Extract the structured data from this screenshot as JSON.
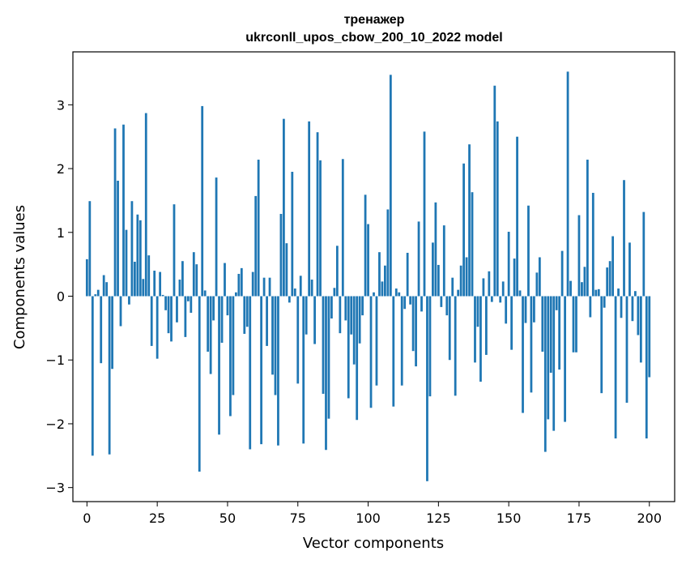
{
  "chart_data": {
    "type": "bar",
    "title_line1": "тренажер",
    "title_line2": "ukrconll_upos_cbow_200_10_2022 model",
    "xlabel": "Vector components",
    "ylabel": "Components values",
    "xlim": [
      -5,
      209
    ],
    "ylim": [
      -3.22,
      3.83
    ],
    "xticks": [
      0,
      25,
      50,
      75,
      100,
      125,
      150,
      175,
      200
    ],
    "yticks": [
      -3,
      -2,
      -1,
      0,
      1,
      2,
      3
    ],
    "ytick_labels": [
      "−3",
      "−2",
      "−1",
      "0",
      "1",
      "2",
      "3"
    ],
    "bar_color": "#1f77b4",
    "grid": false,
    "values": [
      0.58,
      1.49,
      -2.5,
      0.03,
      0.1,
      -1.05,
      0.33,
      0.22,
      -2.48,
      -1.14,
      2.63,
      1.81,
      -0.47,
      2.69,
      1.04,
      -0.13,
      1.49,
      0.54,
      1.28,
      1.19,
      0.27,
      2.87,
      0.64,
      -0.78,
      0.4,
      -0.98,
      0.38,
      0.02,
      -0.22,
      -0.58,
      -0.71,
      1.44,
      -0.41,
      0.26,
      0.55,
      -0.64,
      -0.08,
      -0.26,
      0.69,
      0.5,
      -2.75,
      2.98,
      0.09,
      -0.87,
      -1.22,
      -0.38,
      1.86,
      -2.17,
      -0.73,
      0.52,
      -0.3,
      -1.88,
      -1.55,
      0.06,
      0.35,
      0.44,
      -0.59,
      -0.48,
      -2.4,
      0.38,
      1.57,
      2.14,
      -2.32,
      0.29,
      -0.78,
      0.29,
      -1.23,
      -1.55,
      -2.34,
      1.29,
      2.78,
      0.83,
      -0.1,
      1.95,
      0.12,
      -1.37,
      0.32,
      -2.31,
      -0.6,
      2.74,
      0.26,
      -0.75,
      2.57,
      2.13,
      -1.53,
      -2.41,
      -1.92,
      -0.35,
      0.13,
      0.79,
      -0.58,
      2.15,
      -0.38,
      -1.6,
      -0.6,
      -1.07,
      -1.94,
      -0.74,
      -0.3,
      1.59,
      1.13,
      -1.75,
      0.06,
      -1.4,
      0.69,
      0.23,
      0.48,
      1.36,
      3.47,
      -1.73,
      0.12,
      0.06,
      -1.4,
      -0.2,
      0.68,
      -0.13,
      -0.86,
      -1.1,
      1.17,
      -0.24,
      2.58,
      -2.9,
      -1.57,
      0.84,
      1.47,
      0.49,
      -0.17,
      1.11,
      -0.3,
      -1.0,
      0.29,
      -1.56,
      0.1,
      0.48,
      2.08,
      0.61,
      2.38,
      1.63,
      -1.04,
      -0.48,
      -1.34,
      0.28,
      -0.92,
      0.39,
      -0.09,
      3.3,
      2.74,
      -0.1,
      0.23,
      -0.43,
      1.01,
      -0.84,
      0.59,
      2.5,
      0.09,
      -1.83,
      -0.42,
      1.42,
      -1.51,
      -0.41,
      0.37,
      0.61,
      -0.87,
      -2.44,
      -1.93,
      -1.2,
      -2.11,
      -0.22,
      -1.15,
      0.71,
      -1.97,
      3.52,
      0.24,
      -0.88,
      -0.88,
      1.27,
      0.22,
      0.46,
      2.14,
      -0.33,
      1.62,
      0.1,
      0.11,
      -1.52,
      -0.18,
      0.45,
      0.55,
      0.94,
      -2.23,
      0.12,
      -0.34,
      1.82,
      -1.67,
      0.84,
      -0.39,
      0.08,
      -0.61,
      -1.04,
      1.32,
      -2.23,
      -1.27
    ]
  }
}
